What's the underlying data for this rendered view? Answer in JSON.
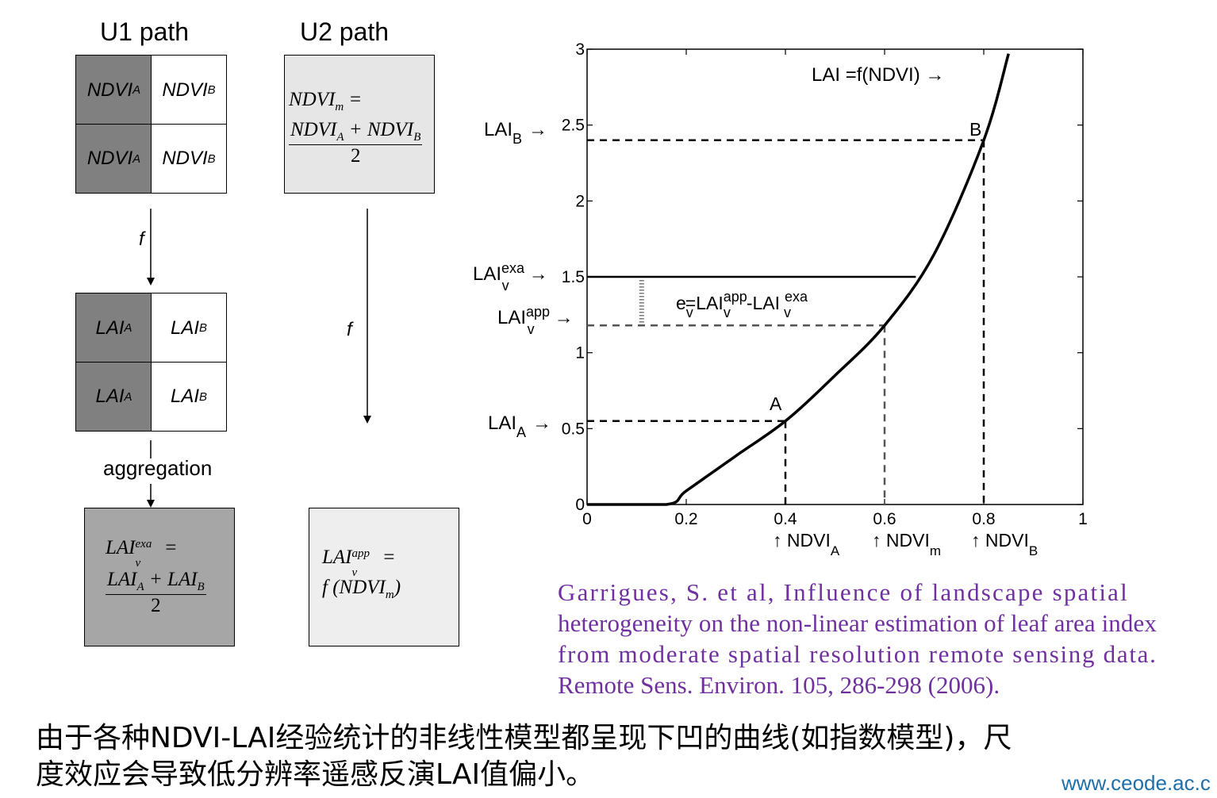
{
  "left": {
    "u1_title": "U1 path",
    "u2_title": "U2 path",
    "ndvi_a": "NDVI",
    "ndvi_a_sub": "A",
    "ndvi_b": "NDVI",
    "ndvi_b_sub": "B",
    "lai_a": "LAI",
    "lai_a_sub": "A",
    "lai_b": "LAI",
    "lai_b_sub": "B",
    "f_label": "f",
    "aggregation_label": "aggregation",
    "u2_box_line1": "NDVI",
    "u2_box_line1_sub": "m",
    "u2_box_eq": " =",
    "u2_box_num": "NDVI",
    "u2_box_num_sub_a": "A",
    "u2_box_plus": " + NDVI",
    "u2_box_num_sub_b": "B",
    "u2_box_den": "2",
    "u1_result_lai": "LAI",
    "u1_result_sup": "exa",
    "u1_result_sub": "v",
    "u1_result_eq": " =",
    "u1_result_num": "LAI",
    "u1_result_num_sub_a": "A",
    "u1_result_plus": " + LAI",
    "u1_result_num_sub_b": "B",
    "u1_result_den": "2",
    "u2_result_lai": "LAI",
    "u2_result_sup": "app",
    "u2_result_sub": "v",
    "u2_result_eq": " =",
    "u2_result_func": "f (NDVI",
    "u2_result_func_sub": "m",
    "u2_result_func_close": ")"
  },
  "chart_data": {
    "type": "line",
    "xlim": [
      0,
      1
    ],
    "ylim": [
      0,
      3
    ],
    "x_ticks": [
      "0",
      "0.2",
      "0.4",
      "0.6",
      "0.8",
      "1"
    ],
    "y_ticks": [
      "0",
      "0.5",
      "1",
      "1.5",
      "2",
      "2.5",
      "3"
    ],
    "curve_label": "LAI  =f(NDVI)",
    "curve_label_arrow": "→",
    "series": [
      {
        "x": [
          0,
          0.16,
          0.2,
          0.3,
          0.4,
          0.5,
          0.6,
          0.7,
          0.8,
          0.85
        ],
        "y": [
          0,
          0,
          0.09,
          0.32,
          0.55,
          0.85,
          1.18,
          1.65,
          2.4,
          2.97
        ]
      }
    ],
    "points": [
      {
        "label": "A",
        "x": 0.4,
        "y": 0.55
      },
      {
        "label": "B",
        "x": 0.8,
        "y": 2.4
      }
    ],
    "reference_lines": {
      "lai_exa": 1.5,
      "lai_app": 1.18,
      "ndvi_m": 0.6
    },
    "y_annotations": [
      {
        "main": "LAI",
        "sub": "B",
        "sup": "",
        "arrow": "→"
      },
      {
        "main": "LAI",
        "sub": "v",
        "sup": "exa",
        "arrow": "→"
      },
      {
        "main": "LAI",
        "sub": "v",
        "sup": "app",
        "arrow": "→"
      },
      {
        "main": "LAI",
        "sub": "A",
        "sup": "",
        "arrow": "→"
      }
    ],
    "x_annotations": [
      {
        "arrow": "↑",
        "main": "NDVI",
        "sub": "A"
      },
      {
        "arrow": "↑",
        "main": "NDVI",
        "sub": "m"
      },
      {
        "arrow": "↑",
        "main": "NDVI",
        "sub": "B"
      }
    ],
    "error_label": {
      "e": "e",
      "e_sub": "v",
      "eq": "=LAI",
      "app_sup": "app",
      "app_sub": "v",
      "minus": "-LAI",
      "exa_sup": "exa",
      "exa_sub": "v"
    }
  },
  "citation": {
    "line1": "Garrigues, S. et al, Influence of landscape spatial",
    "line2": "heterogeneity on the non-linear estimation of leaf area index",
    "line3": "from moderate spatial resolution remote sensing data.",
    "line4": "Remote Sens. Environ. 105, 286-298 (2006)."
  },
  "caption": {
    "line1": "由于各种NDVI-LAI经验统计的非线性模型都呈现下凹的曲线(如指数模型)，尺",
    "line2": "度效应会导致低分辨率遥感反演LAI值偏小。"
  },
  "watermark": "www.ceode.ac.c"
}
